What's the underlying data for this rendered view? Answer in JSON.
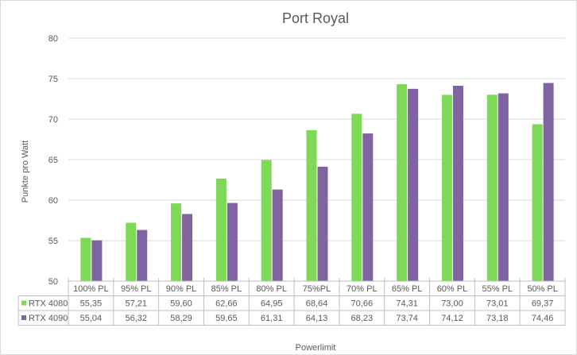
{
  "chart_data": {
    "type": "bar",
    "title": "Port Royal",
    "xlabel": "Powerlimit",
    "ylabel": "Punkte pro Watt",
    "ylim": [
      50,
      80
    ],
    "yticks": [
      50,
      55,
      60,
      65,
      70,
      75,
      80
    ],
    "grid": true,
    "legend": "data-table",
    "categories": [
      "100% PL",
      "95% PL",
      "90% PL",
      "85% PL",
      "80% PL",
      "75%PL",
      "70% PL",
      "65% PL",
      "60% PL",
      "55% PL",
      "50% PL"
    ],
    "series": [
      {
        "name": "RTX 4080",
        "color": "#7ed957",
        "values": [
          55.35,
          57.21,
          59.6,
          62.66,
          64.95,
          68.64,
          70.66,
          74.31,
          73.0,
          73.01,
          69.37
        ],
        "labels": [
          "55,35",
          "57,21",
          "59,60",
          "62,66",
          "64,95",
          "68,64",
          "70,66",
          "74,31",
          "73,00",
          "73,01",
          "69,37"
        ]
      },
      {
        "name": "RTX 4090",
        "color": "#8064a2",
        "values": [
          55.04,
          56.32,
          58.29,
          59.65,
          61.31,
          64.13,
          68.23,
          73.74,
          74.12,
          73.18,
          74.46
        ],
        "labels": [
          "55,04",
          "56,32",
          "58,29",
          "59,65",
          "61,31",
          "64,13",
          "68,23",
          "73,74",
          "74,12",
          "73,18",
          "74,46"
        ]
      }
    ]
  }
}
